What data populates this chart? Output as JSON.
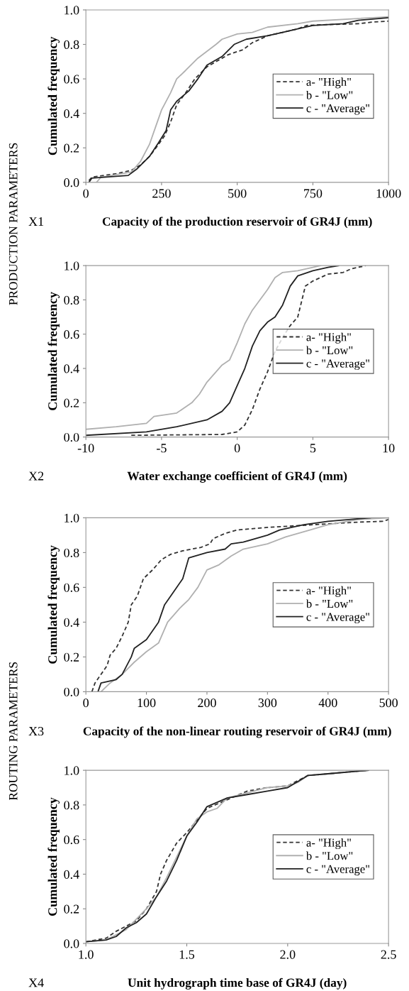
{
  "chart_data": [
    {
      "type": "line",
      "xlabel": "Capacity of the production reservoir of GR4J (mm)",
      "ylabel": "Cumulated frequency",
      "annotations": [
        "X1",
        "PRODUCTION PARAMETERS"
      ],
      "xlim": [
        0,
        1000
      ],
      "xticks": [
        0,
        250,
        500,
        750,
        1000
      ],
      "ylim": [
        0,
        1
      ],
      "yticks": [
        {
          "value": 0,
          "label": "0.0"
        },
        {
          "value": 0.2,
          "label": "0.2"
        },
        {
          "value": 0.4,
          "label": "0.4"
        },
        {
          "value": 0.6,
          "label": "0.6"
        },
        {
          "value": 0.8,
          "label": "0.8"
        },
        {
          "value": 1,
          "label": "1.0"
        }
      ],
      "grid": false,
      "legend": "center right",
      "series": [
        {
          "name": "a- \"High\"",
          "color": "#333333",
          "line_style": "dashed",
          "x": [
            10,
            20,
            100,
            150,
            180,
            210,
            240,
            260,
            280,
            300,
            330,
            360,
            400,
            430,
            470,
            520,
            550,
            600,
            650,
            700,
            730,
            800,
            900,
            950,
            1000
          ],
          "values": [
            0.01,
            0.03,
            0.05,
            0.07,
            0.1,
            0.15,
            0.22,
            0.27,
            0.35,
            0.45,
            0.52,
            0.6,
            0.67,
            0.7,
            0.74,
            0.77,
            0.81,
            0.85,
            0.87,
            0.89,
            0.91,
            0.915,
            0.92,
            0.93,
            0.935
          ]
        },
        {
          "name": "b - \"Low\"",
          "color": "#b0b0b0",
          "line_style": "solid",
          "x": [
            35,
            50,
            150,
            180,
            210,
            230,
            250,
            280,
            300,
            330,
            370,
            400,
            430,
            450,
            500,
            550,
            600,
            700,
            750,
            900,
            1000
          ],
          "values": [
            0.0,
            0.03,
            0.06,
            0.12,
            0.22,
            0.32,
            0.42,
            0.52,
            0.6,
            0.65,
            0.72,
            0.76,
            0.8,
            0.83,
            0.86,
            0.87,
            0.9,
            0.92,
            0.935,
            0.95,
            0.96
          ]
        },
        {
          "name": "c - \"Average\"",
          "color": "#222222",
          "line_style": "solid",
          "x": [
            10,
            20,
            140,
            170,
            210,
            240,
            265,
            280,
            300,
            340,
            370,
            400,
            450,
            490,
            530,
            600,
            650,
            700,
            750,
            850,
            900,
            1000
          ],
          "values": [
            0.0,
            0.025,
            0.04,
            0.08,
            0.15,
            0.23,
            0.3,
            0.42,
            0.47,
            0.53,
            0.6,
            0.68,
            0.73,
            0.8,
            0.83,
            0.85,
            0.87,
            0.89,
            0.91,
            0.92,
            0.94,
            0.955
          ]
        }
      ]
    },
    {
      "type": "line",
      "xlabel": "Water exchange coefficient of GR4J (mm)",
      "ylabel": "Cumulated frequency",
      "annotations": [
        "X2"
      ],
      "xlim": [
        -10,
        10
      ],
      "xticks": [
        -10,
        -5,
        0,
        5,
        10
      ],
      "ylim": [
        0,
        1
      ],
      "yticks": [
        {
          "value": 0,
          "label": "0.0"
        },
        {
          "value": 0.2,
          "label": "0.2"
        },
        {
          "value": 0.4,
          "label": "0.4"
        },
        {
          "value": 0.6,
          "label": "0.6"
        },
        {
          "value": 0.8,
          "label": "0.8"
        },
        {
          "value": 1,
          "label": "1.0"
        }
      ],
      "grid": false,
      "legend": "center right",
      "series": [
        {
          "name": "a- \"High\"",
          "color": "#333333",
          "line_style": "dashed",
          "x": [
            -7,
            -1,
            0,
            0.5,
            1,
            1.5,
            2,
            2.5,
            3,
            3.5,
            4,
            4.5,
            5,
            6,
            7,
            7.5,
            8.5
          ],
          "values": [
            0.01,
            0.015,
            0.03,
            0.07,
            0.16,
            0.28,
            0.38,
            0.5,
            0.58,
            0.65,
            0.7,
            0.88,
            0.91,
            0.95,
            0.96,
            0.98,
            1.0
          ]
        },
        {
          "name": "b - \"Low\"",
          "color": "#b0b0b0",
          "line_style": "solid",
          "x": [
            -10,
            -8,
            -6,
            -5.5,
            -4,
            -3,
            -2.5,
            -2,
            -1,
            -0.5,
            0,
            0.5,
            1,
            1.5,
            2,
            2.5,
            3,
            4,
            5,
            5.5
          ],
          "values": [
            0.045,
            0.06,
            0.08,
            0.12,
            0.14,
            0.2,
            0.25,
            0.32,
            0.42,
            0.45,
            0.55,
            0.66,
            0.74,
            0.8,
            0.86,
            0.93,
            0.96,
            0.97,
            0.99,
            1.0
          ]
        },
        {
          "name": "c - \"Average\"",
          "color": "#222222",
          "line_style": "solid",
          "x": [
            -10,
            -6,
            -4,
            -2,
            -1,
            -0.5,
            0,
            0.5,
            1,
            1.5,
            2,
            2.5,
            3,
            3.5,
            4,
            5,
            6,
            6.7
          ],
          "values": [
            0.01,
            0.03,
            0.06,
            0.1,
            0.15,
            0.2,
            0.3,
            0.4,
            0.53,
            0.62,
            0.67,
            0.7,
            0.77,
            0.88,
            0.94,
            0.97,
            0.99,
            1.0
          ]
        }
      ]
    },
    {
      "type": "line",
      "xlabel": "Capacity of the non-linear routing reservoir of GR4J (mm)",
      "ylabel": "Cumulated frequency",
      "annotations": [
        "X3",
        "ROUTING PARAMETERS"
      ],
      "xlim": [
        0,
        500
      ],
      "xticks": [
        0,
        100,
        200,
        300,
        400,
        500
      ],
      "ylim": [
        0,
        1
      ],
      "yticks": [
        {
          "value": 0,
          "label": "0.0"
        },
        {
          "value": 0.2,
          "label": "0.2"
        },
        {
          "value": 0.4,
          "label": "0.4"
        },
        {
          "value": 0.6,
          "label": "0.6"
        },
        {
          "value": 0.8,
          "label": "0.8"
        },
        {
          "value": 1,
          "label": "1.0"
        }
      ],
      "grid": false,
      "legend": "center right",
      "series": [
        {
          "name": "a- \"High\"",
          "color": "#333333",
          "line_style": "dashed",
          "x": [
            10,
            15,
            25,
            35,
            40,
            50,
            60,
            70,
            75,
            85,
            95,
            110,
            125,
            140,
            160,
            190,
            205,
            210,
            230,
            250,
            300,
            400,
            450,
            490,
            500
          ],
          "values": [
            0.0,
            0.05,
            0.1,
            0.15,
            0.21,
            0.25,
            0.32,
            0.4,
            0.5,
            0.55,
            0.65,
            0.7,
            0.76,
            0.79,
            0.81,
            0.83,
            0.85,
            0.88,
            0.91,
            0.93,
            0.945,
            0.965,
            0.975,
            0.98,
            0.99
          ]
        },
        {
          "name": "b - \"Low\"",
          "color": "#b0b0b0",
          "line_style": "solid",
          "x": [
            25,
            40,
            60,
            80,
            100,
            120,
            135,
            155,
            170,
            185,
            200,
            220,
            240,
            260,
            300,
            330,
            370,
            400,
            450,
            500
          ],
          "values": [
            0.0,
            0.05,
            0.1,
            0.17,
            0.23,
            0.28,
            0.4,
            0.48,
            0.53,
            0.6,
            0.7,
            0.73,
            0.78,
            0.82,
            0.85,
            0.89,
            0.93,
            0.96,
            0.99,
            1.0
          ]
        },
        {
          "name": "c - \"Average\"",
          "color": "#222222",
          "line_style": "solid",
          "x": [
            20,
            25,
            50,
            60,
            75,
            80,
            100,
            120,
            130,
            150,
            160,
            170,
            200,
            230,
            240,
            260,
            300,
            320,
            360,
            400,
            470
          ],
          "values": [
            0.0,
            0.05,
            0.07,
            0.1,
            0.2,
            0.25,
            0.3,
            0.4,
            0.5,
            0.6,
            0.65,
            0.77,
            0.8,
            0.82,
            0.85,
            0.86,
            0.9,
            0.93,
            0.96,
            0.98,
            1.0
          ]
        }
      ]
    },
    {
      "type": "line",
      "xlabel": "Unit hydrograph time base of GR4J (day)",
      "ylabel": "Cumulated frequency",
      "annotations": [
        "X4"
      ],
      "xlim": [
        1,
        2.5
      ],
      "xticks": [
        {
          "value": 1,
          "label": "1.0"
        },
        {
          "value": 1.5,
          "label": "1.5"
        },
        {
          "value": 2,
          "label": "2.0"
        },
        {
          "value": 2.5,
          "label": "2.5"
        }
      ],
      "ylim": [
        0,
        1
      ],
      "yticks": [
        {
          "value": 0,
          "label": "0.0"
        },
        {
          "value": 0.2,
          "label": "0.2"
        },
        {
          "value": 0.4,
          "label": "0.4"
        },
        {
          "value": 0.6,
          "label": "0.6"
        },
        {
          "value": 0.8,
          "label": "0.8"
        },
        {
          "value": 1,
          "label": "1.0"
        }
      ],
      "grid": false,
      "legend": "center right",
      "series": [
        {
          "name": "a- \"High\"",
          "color": "#333333",
          "line_style": "dashed",
          "x": [
            1.0,
            1.1,
            1.15,
            1.2,
            1.25,
            1.3,
            1.35,
            1.37,
            1.4,
            1.45,
            1.5,
            1.55,
            1.6,
            1.7,
            1.8,
            1.9,
            2.0,
            2.1,
            2.2,
            2.4
          ],
          "values": [
            0.01,
            0.03,
            0.07,
            0.1,
            0.13,
            0.2,
            0.3,
            0.4,
            0.48,
            0.58,
            0.64,
            0.71,
            0.78,
            0.83,
            0.88,
            0.9,
            0.91,
            0.97,
            0.98,
            1.0
          ]
        },
        {
          "name": "b - \"Low\"",
          "color": "#b0b0b0",
          "line_style": "solid",
          "x": [
            1.0,
            1.1,
            1.2,
            1.3,
            1.35,
            1.4,
            1.45,
            1.5,
            1.55,
            1.6,
            1.65,
            1.7,
            1.8,
            1.9,
            2.0,
            2.05,
            2.1,
            2.2,
            2.4
          ],
          "values": [
            0.01,
            0.02,
            0.08,
            0.2,
            0.27,
            0.38,
            0.5,
            0.62,
            0.72,
            0.76,
            0.78,
            0.84,
            0.87,
            0.9,
            0.91,
            0.93,
            0.97,
            0.98,
            1.0
          ]
        },
        {
          "name": "c - \"Average\"",
          "color": "#222222",
          "line_style": "solid",
          "x": [
            1.0,
            1.1,
            1.15,
            1.2,
            1.25,
            1.3,
            1.35,
            1.4,
            1.45,
            1.5,
            1.55,
            1.6,
            1.7,
            1.8,
            1.9,
            2.0,
            2.1,
            2.2,
            2.4
          ],
          "values": [
            0.01,
            0.02,
            0.04,
            0.09,
            0.12,
            0.17,
            0.27,
            0.36,
            0.48,
            0.62,
            0.7,
            0.79,
            0.84,
            0.86,
            0.88,
            0.9,
            0.97,
            0.98,
            1.0
          ]
        }
      ]
    }
  ]
}
